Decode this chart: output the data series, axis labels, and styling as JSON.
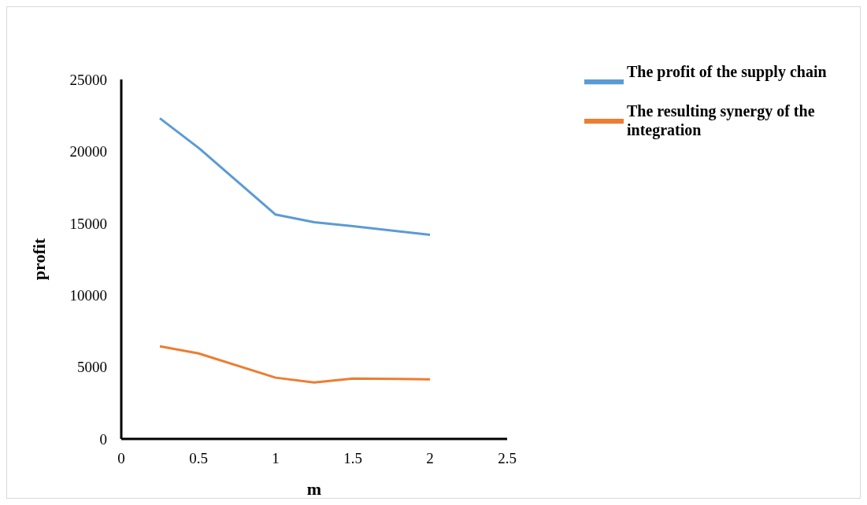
{
  "chart_data": {
    "type": "line",
    "xlabel": "m",
    "ylabel": "profit",
    "x": [
      0.25,
      0.5,
      1,
      1.25,
      1.5,
      2
    ],
    "series": [
      {
        "name": "The profit of the supply chain",
        "color": "#5b9bd5",
        "values": [
          22300,
          20250,
          15600,
          15070,
          14800,
          14190
        ]
      },
      {
        "name": "The resulting synergy of the integration",
        "color": "#ed7d31",
        "values": [
          6440,
          5950,
          4260,
          3930,
          4200,
          4150
        ]
      }
    ],
    "xlim": [
      0,
      2.5
    ],
    "xticks": [
      0,
      0.5,
      1,
      1.5,
      2,
      2.5
    ],
    "ylim": [
      0,
      25000
    ],
    "yticks": [
      0,
      5000,
      10000,
      15000,
      20000,
      25000
    ],
    "grid": false,
    "legend": "top right",
    "marker": "none",
    "line_style": "solid"
  }
}
